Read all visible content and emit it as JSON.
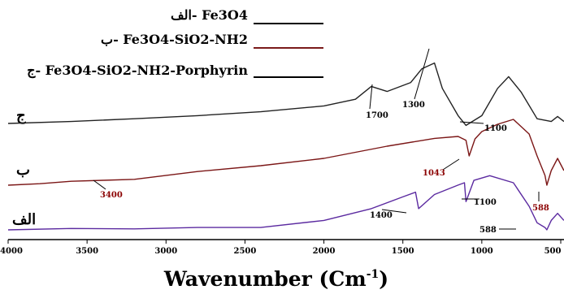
{
  "chart_data": {
    "type": "line",
    "xlabel": "Wavenumber (Cm",
    "xlabel_sup": "-1",
    "xlabel_close": ")",
    "xlim": [
      4000,
      500
    ],
    "x_ticks": [
      "4000",
      "3500",
      "3000",
      "2500",
      "2000",
      "1500",
      "1000",
      "500"
    ],
    "legend": [
      {
        "text": "الف- Fe3O4",
        "color": "#000000"
      },
      {
        "text": "ب- Fe3O4-SiO2-NH2",
        "color": "#7a1a1a"
      },
      {
        "text": "ج- Fe3O4-SiO2-NH2-Porphyrin",
        "color": "#000000"
      }
    ],
    "series": [
      {
        "name": "ج",
        "color": "#222222",
        "x": [
          4000,
          3600,
          3200,
          2800,
          2400,
          2000,
          1800,
          1700,
          1600,
          1450,
          1380,
          1300,
          1250,
          1150,
          1100,
          1000,
          900,
          830,
          750,
          650,
          560,
          520,
          480
        ],
        "y": [
          0.0,
          0.05,
          0.12,
          0.2,
          0.3,
          0.45,
          0.62,
          0.95,
          0.82,
          1.05,
          1.4,
          1.55,
          0.9,
          0.2,
          -0.05,
          0.2,
          0.9,
          1.2,
          0.8,
          0.12,
          0.05,
          0.18,
          0.05
        ]
      },
      {
        "name": "ب",
        "color": "#7b1616",
        "x": [
          4000,
          3800,
          3600,
          3400,
          3200,
          2800,
          2400,
          2000,
          1600,
          1300,
          1150,
          1100,
          1080,
          1043,
          1000,
          900,
          800,
          700,
          650,
          600,
          588,
          560,
          520,
          480
        ],
        "y": [
          0.0,
          0.03,
          0.08,
          0.1,
          0.12,
          0.28,
          0.4,
          0.55,
          0.8,
          0.96,
          1.0,
          0.92,
          0.6,
          0.95,
          1.1,
          1.25,
          1.35,
          1.05,
          0.6,
          0.2,
          0.0,
          0.3,
          0.55,
          0.3
        ]
      },
      {
        "name": "الف",
        "color": "#5b2aa0",
        "x": [
          4000,
          3600,
          3200,
          2800,
          2400,
          2000,
          1700,
          1500,
          1420,
          1400,
          1300,
          1150,
          1110,
          1100,
          1050,
          950,
          800,
          700,
          650,
          600,
          588,
          560,
          520,
          480
        ],
        "y": [
          0.0,
          0.03,
          0.02,
          0.05,
          0.05,
          0.2,
          0.45,
          0.7,
          0.8,
          0.45,
          0.75,
          0.95,
          1.0,
          0.6,
          1.05,
          1.15,
          1.0,
          0.5,
          0.15,
          0.05,
          0.0,
          0.2,
          0.35,
          0.2
        ]
      }
    ],
    "trace_labels": [
      "ج",
      "ب",
      "الف"
    ],
    "annotations": [
      {
        "text": "1700",
        "series": 0,
        "color": "#000000"
      },
      {
        "text": "1300",
        "series": 0,
        "color": "#000000"
      },
      {
        "text": "1100",
        "series": 0,
        "color": "#000000"
      },
      {
        "text": "3400",
        "series": 1,
        "color": "#8b0000"
      },
      {
        "text": "1043",
        "series": 1,
        "color": "#8b0000"
      },
      {
        "text": "588",
        "series": 1,
        "color": "#8b0000"
      },
      {
        "text": "1400",
        "series": 2,
        "color": "#000000"
      },
      {
        "text": "1100",
        "series": 2,
        "color": "#000000"
      },
      {
        "text": "588",
        "series": 2,
        "color": "#000000"
      }
    ]
  }
}
